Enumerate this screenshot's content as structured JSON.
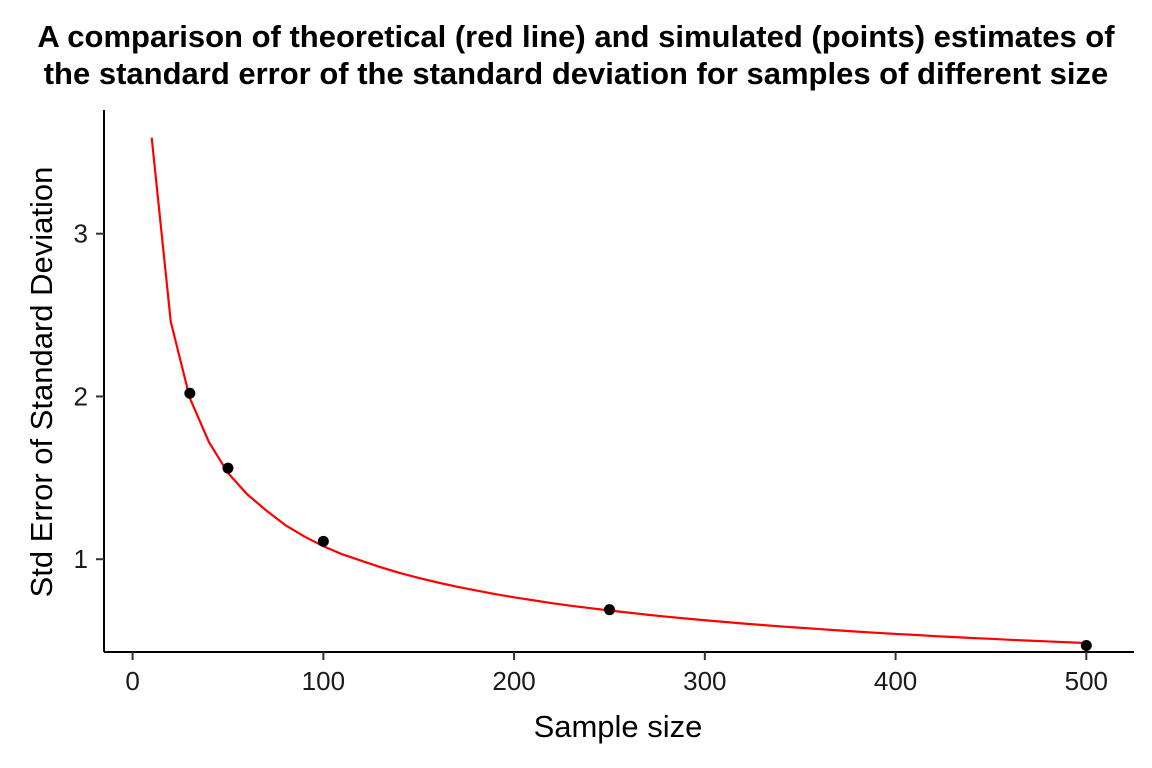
{
  "chart_data": {
    "type": "scatter",
    "title_lines": [
      "A comparison of theoretical (red line) and simulated (points) estimates of",
      "the standard error of the standard deviation for samples of different size"
    ],
    "xlabel": "Sample size",
    "ylabel": "Std Error of Standard Deviation",
    "xlim": [
      -15,
      525
    ],
    "ylim": [
      0.43,
      3.76
    ],
    "x_ticks": [
      0,
      100,
      200,
      300,
      400,
      500
    ],
    "x_tick_labels": [
      "0",
      "100",
      "200",
      "300",
      "400",
      "500"
    ],
    "y_ticks": [
      1,
      2,
      3
    ],
    "y_tick_labels": [
      "1",
      "2",
      "3"
    ],
    "grid": false,
    "series": [
      {
        "kind": "line",
        "color": "#ff0000",
        "x": [
          10,
          20,
          30,
          40,
          50,
          60,
          70,
          80,
          90,
          100,
          110,
          120,
          130,
          140,
          150,
          160,
          170,
          180,
          190,
          200,
          210,
          220,
          230,
          240,
          250,
          260,
          270,
          280,
          290,
          300,
          310,
          320,
          330,
          340,
          350,
          360,
          370,
          380,
          390,
          400,
          410,
          420,
          430,
          440,
          450,
          460,
          470,
          480,
          490,
          500
        ],
        "y": [
          3.59,
          2.46,
          1.99,
          1.72,
          1.53,
          1.4,
          1.3,
          1.21,
          1.14,
          1.08,
          1.03,
          0.99,
          0.951,
          0.916,
          0.885,
          0.857,
          0.831,
          0.808,
          0.786,
          0.766,
          0.748,
          0.73,
          0.714,
          0.699,
          0.685,
          0.672,
          0.659,
          0.647,
          0.636,
          0.625,
          0.615,
          0.605,
          0.596,
          0.587,
          0.579,
          0.571,
          0.563,
          0.555,
          0.548,
          0.541,
          0.535,
          0.528,
          0.522,
          0.516,
          0.511,
          0.505,
          0.5,
          0.495,
          0.49,
          0.485
        ]
      },
      {
        "kind": "points",
        "color": "#000000",
        "x": [
          30,
          50,
          100,
          250,
          500
        ],
        "y": [
          2.02,
          1.56,
          1.11,
          0.69,
          0.47
        ]
      }
    ]
  }
}
